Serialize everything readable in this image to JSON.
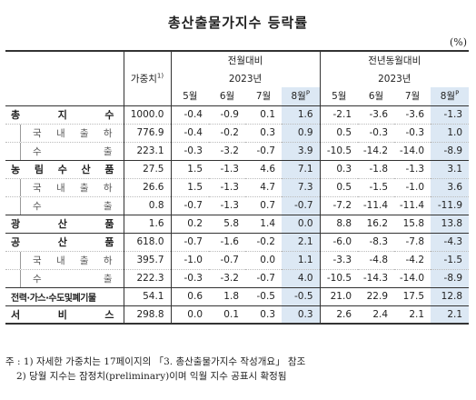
{
  "title": "총산출물가지수 등락률",
  "unit": "(%)",
  "header": {
    "weight": "가중치",
    "weight_sup": "1)",
    "mom": "전월대비",
    "yoy": "전년동월대비",
    "year": "2023년",
    "months": [
      "5월",
      "6월",
      "7월",
      "8월"
    ],
    "prelim_sup": "P"
  },
  "rows": [
    {
      "name": "총 지 수",
      "type": "cat",
      "weight": "1000.0",
      "mom": [
        "-0.4",
        "-0.9",
        "0.1",
        "1.6"
      ],
      "yoy": [
        "-2.1",
        "-3.6",
        "-3.6",
        "-1.3"
      ]
    },
    {
      "name": "국 내 출 하",
      "type": "sub",
      "weight": "776.9",
      "mom": [
        "-0.4",
        "-0.2",
        "0.3",
        "0.9"
      ],
      "yoy": [
        "0.5",
        "-0.3",
        "-0.3",
        "1.0"
      ]
    },
    {
      "name": "수 출",
      "type": "sub",
      "weight": "223.1",
      "mom": [
        "-0.3",
        "-3.2",
        "-0.7",
        "3.9"
      ],
      "yoy": [
        "-10.5",
        "-14.2",
        "-14.0",
        "-8.9"
      ]
    },
    {
      "name": "농 림 수 산 품",
      "type": "cat",
      "weight": "27.5",
      "mom": [
        "1.5",
        "-1.3",
        "4.6",
        "7.1"
      ],
      "yoy": [
        "0.3",
        "-1.8",
        "-1.3",
        "3.1"
      ]
    },
    {
      "name": "국 내 출 하",
      "type": "sub",
      "weight": "26.6",
      "mom": [
        "1.5",
        "-1.3",
        "4.7",
        "7.3"
      ],
      "yoy": [
        "0.5",
        "-1.5",
        "-1.0",
        "3.6"
      ]
    },
    {
      "name": "수 출",
      "type": "sub",
      "weight": "0.8",
      "mom": [
        "-0.7",
        "-1.3",
        "0.7",
        "-0.7"
      ],
      "yoy": [
        "-7.2",
        "-11.4",
        "-11.4",
        "-11.9"
      ]
    },
    {
      "name": "광 산 품",
      "type": "cat",
      "weight": "1.6",
      "mom": [
        "0.2",
        "5.8",
        "1.4",
        "0.0"
      ],
      "yoy": [
        "8.8",
        "16.2",
        "15.8",
        "13.8"
      ]
    },
    {
      "name": "공 산 품",
      "type": "cat",
      "weight": "618.0",
      "mom": [
        "-0.7",
        "-1.6",
        "-0.2",
        "2.1"
      ],
      "yoy": [
        "-6.0",
        "-8.3",
        "-7.8",
        "-4.3"
      ]
    },
    {
      "name": "국 내 출 하",
      "type": "sub",
      "weight": "395.7",
      "mom": [
        "-1.0",
        "-0.7",
        "0.0",
        "1.1"
      ],
      "yoy": [
        "-3.3",
        "-4.8",
        "-4.2",
        "-1.5"
      ]
    },
    {
      "name": "수 출",
      "type": "sub",
      "weight": "222.3",
      "mom": [
        "-0.3",
        "-3.2",
        "-0.7",
        "4.0"
      ],
      "yoy": [
        "-10.5",
        "-14.3",
        "-14.0",
        "-8.9"
      ]
    },
    {
      "name": "전력·가스·수도및폐기물",
      "type": "cat",
      "weight": "54.1",
      "mom": [
        "0.6",
        "1.8",
        "-0.5",
        "-0.5"
      ],
      "yoy": [
        "21.0",
        "22.9",
        "17.5",
        "12.8"
      ]
    },
    {
      "name": "서 비 스",
      "type": "cat",
      "weight": "298.8",
      "mom": [
        "0.0",
        "0.1",
        "0.3",
        "0.3"
      ],
      "yoy": [
        "2.6",
        "2.4",
        "2.1",
        "2.1"
      ]
    }
  ],
  "notes": [
    "주 : 1) 자세한 가중치는 17페이지의 「3. 총산출물가지수 작성개요」 참조",
    "2) 당월 지수는 잠정치(preliminary)이며 익월 지수 공표시 확정됨"
  ]
}
